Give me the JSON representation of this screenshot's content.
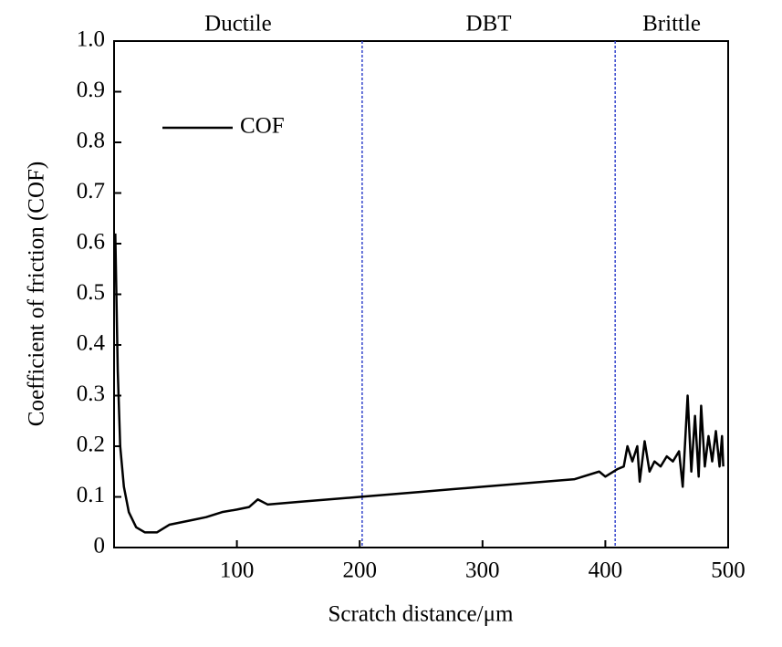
{
  "chart_data": {
    "type": "line",
    "x_label": "Scratch distance/μm",
    "y_label": "Coefficient of friction (COF)",
    "xlim": [
      0,
      500
    ],
    "ylim": [
      0,
      1
    ],
    "xticks": [
      100,
      200,
      300,
      400,
      500
    ],
    "yticks": [
      0,
      0.1,
      0.2,
      0.3,
      0.4,
      0.5,
      0.6,
      0.7,
      0.8,
      0.9,
      {
        "value": 1,
        "label": "1.0"
      }
    ],
    "legend": "upper left",
    "regions": [
      "Ductile",
      "DBT",
      "Brittle"
    ],
    "region_boundaries": [
      202,
      408
    ],
    "boundary_color": "#3344cc",
    "series": [
      {
        "name": "COF",
        "color": "#000000",
        "x": [
          1,
          3,
          5,
          8,
          12,
          18,
          25,
          35,
          45,
          55,
          65,
          75,
          88,
          100,
          110,
          117,
          125,
          150,
          175,
          200,
          225,
          250,
          275,
          300,
          325,
          350,
          375,
          395,
          400,
          410,
          415,
          418,
          422,
          426,
          428,
          432,
          436,
          440,
          445,
          450,
          455,
          460,
          463,
          467,
          470,
          473,
          476,
          478,
          481,
          484,
          487,
          490,
          493,
          495,
          496
        ],
        "values": [
          0.62,
          0.35,
          0.2,
          0.12,
          0.07,
          0.04,
          0.03,
          0.03,
          0.045,
          0.05,
          0.055,
          0.06,
          0.07,
          0.075,
          0.08,
          0.095,
          0.085,
          0.09,
          0.095,
          0.1,
          0.105,
          0.11,
          0.115,
          0.12,
          0.125,
          0.13,
          0.135,
          0.15,
          0.14,
          0.155,
          0.16,
          0.2,
          0.17,
          0.2,
          0.13,
          0.21,
          0.15,
          0.17,
          0.16,
          0.18,
          0.17,
          0.19,
          0.12,
          0.3,
          0.15,
          0.26,
          0.14,
          0.28,
          0.16,
          0.22,
          0.17,
          0.23,
          0.16,
          0.22,
          0.16
        ]
      }
    ]
  }
}
